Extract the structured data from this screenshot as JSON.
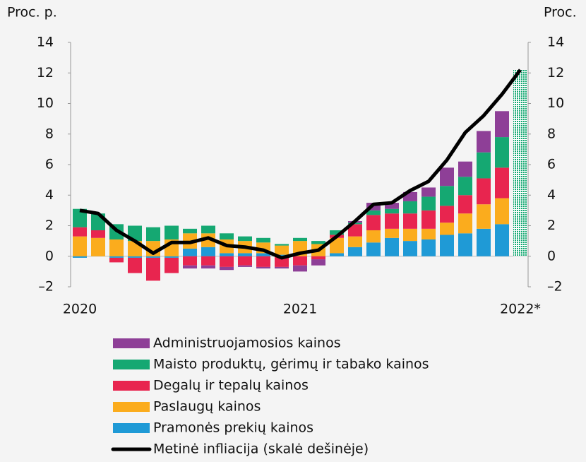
{
  "chart_data": {
    "type": "stacked-bar-line",
    "y_label": "Proc. p.",
    "y2_label": "Proc.",
    "categories": [
      "2020",
      null,
      null,
      null,
      null,
      null,
      null,
      null,
      null,
      null,
      null,
      null,
      "2021",
      null,
      null,
      null,
      null,
      null,
      null,
      null,
      null,
      null,
      null,
      null,
      "2022*"
    ],
    "ylim": [
      -2,
      14
    ],
    "yticks": [
      {
        "value": -2,
        "label": "–2"
      },
      0,
      2,
      4,
      6,
      8,
      10,
      12,
      14
    ],
    "y2lim": [
      -2,
      14
    ],
    "y2ticks": [
      {
        "value": -2,
        "label": "–2"
      },
      0,
      2,
      4,
      6,
      8,
      10,
      12,
      14
    ],
    "series": [
      {
        "name": "Pramonės prekių kainos",
        "color": "#1f9ad6",
        "values": [
          -0.1,
          0,
          -0.1,
          -0.1,
          -0.1,
          -0.1,
          0.5,
          0.6,
          0.2,
          0.2,
          0.2,
          0.1,
          0,
          0,
          0.2,
          0.6,
          0.9,
          1.2,
          1.0,
          1.1,
          1.4,
          1.5,
          1.8,
          2.1,
          null
        ]
      },
      {
        "name": "Paslaugų kainos",
        "color": "#fbac1d",
        "values": [
          1.3,
          1.2,
          1.1,
          1.0,
          1.0,
          1.1,
          1.0,
          0.9,
          0.9,
          0.8,
          0.7,
          0.6,
          1.0,
          0.8,
          1.0,
          0.7,
          0.8,
          0.6,
          0.8,
          0.7,
          0.8,
          1.3,
          1.6,
          1.7,
          null
        ]
      },
      {
        "name": "Degalų ir tepalų kainos",
        "color": "#e8254f",
        "values": [
          0.6,
          0.5,
          -0.3,
          -1.0,
          -1.5,
          -1.0,
          -0.6,
          -0.6,
          -0.7,
          -0.6,
          -0.7,
          -0.7,
          -0.6,
          -0.2,
          0.2,
          0.8,
          1.0,
          1.0,
          1.0,
          1.2,
          1.1,
          1.2,
          1.7,
          2.0,
          null
        ]
      },
      {
        "name": "Maisto produktų, gėrimų ir tabako kainos",
        "color": "#15a872",
        "values": [
          1.2,
          1.1,
          1.0,
          1.0,
          0.9,
          0.9,
          0.3,
          0.5,
          0.4,
          0.3,
          0.3,
          0.1,
          0.2,
          0.2,
          0.3,
          0.1,
          0.3,
          0.3,
          0.8,
          0.9,
          1.3,
          1.2,
          1.7,
          2.0,
          null
        ]
      },
      {
        "name": "Administruojamosios kainos",
        "color": "#8e3f97",
        "values": [
          0,
          0,
          0,
          0,
          0,
          0,
          -0.2,
          -0.2,
          -0.2,
          -0.1,
          -0.1,
          -0.1,
          -0.4,
          -0.4,
          0,
          0.1,
          0.5,
          0.4,
          0.6,
          0.6,
          1.2,
          1.0,
          1.4,
          1.7,
          null
        ]
      },
      {
        "name": "Metinė infliacija (skalė dešinėje)",
        "color": "#000000",
        "axis": "y2",
        "values": [
          3.0,
          2.8,
          1.7,
          1.0,
          0.2,
          0.9,
          0.9,
          1.2,
          0.7,
          0.6,
          0.4,
          -0.1,
          0.2,
          0.4,
          1.3,
          2.3,
          3.4,
          3.5,
          4.3,
          4.9,
          6.3,
          8.1,
          9.2,
          10.6,
          12.2
        ]
      }
    ],
    "forecast_values": [
      null,
      null,
      null,
      null,
      null,
      null,
      null,
      null,
      null,
      null,
      null,
      null,
      null,
      null,
      null,
      null,
      null,
      null,
      null,
      null,
      null,
      null,
      null,
      null,
      12.2
    ],
    "forecast_color": "#15a872"
  }
}
